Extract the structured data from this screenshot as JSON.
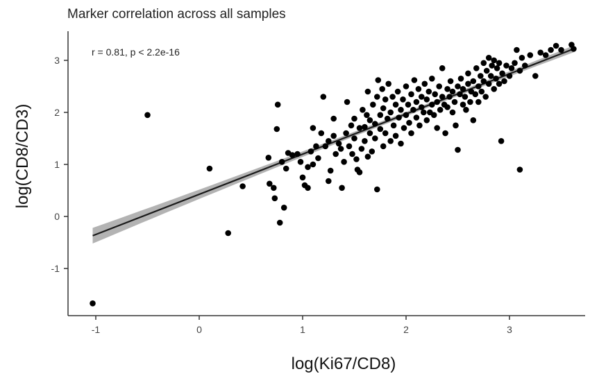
{
  "chart_data": {
    "type": "scatter",
    "title": "Marker correlation across all samples",
    "annotation": "r = 0.81, p < 2.2e-16",
    "xlabel": "log(Ki67/CD8)",
    "ylabel": "log(CD8/CD3)",
    "xlim": [
      -1.2,
      3.7
    ],
    "ylim": [
      -1.9,
      3.5
    ],
    "x_ticks": [
      -1,
      0,
      1,
      2,
      3
    ],
    "x_tick_labels": [
      "-1",
      "0",
      "1",
      "2",
      "3"
    ],
    "y_ticks": [
      -1,
      0,
      1,
      2,
      3
    ],
    "y_tick_labels": [
      "-1",
      "0",
      "1",
      "2",
      "3"
    ],
    "grid": false,
    "fit": {
      "type": "linear",
      "x_start": -1.03,
      "y_start": -0.37,
      "x_end": 3.62,
      "y_end": 3.22,
      "band_halfwidth_ends": 0.15,
      "band_halfwidth_center": 0.04,
      "band_center_x": 2.1,
      "band_color": "#999999",
      "line_color": "#1a1a1a"
    },
    "point_color": "#000000",
    "points": [
      [
        -1.03,
        -1.67
      ],
      [
        -0.5,
        1.95
      ],
      [
        0.1,
        0.92
      ],
      [
        0.28,
        -0.32
      ],
      [
        0.42,
        0.58
      ],
      [
        0.67,
        1.13
      ],
      [
        0.68,
        0.63
      ],
      [
        0.72,
        0.55
      ],
      [
        0.73,
        0.35
      ],
      [
        0.75,
        1.68
      ],
      [
        0.76,
        2.15
      ],
      [
        0.78,
        -0.12
      ],
      [
        0.82,
        0.17
      ],
      [
        0.8,
        1.05
      ],
      [
        0.86,
        1.22
      ],
      [
        0.9,
        1.18
      ],
      [
        0.84,
        0.92
      ],
      [
        0.95,
        1.2
      ],
      [
        0.98,
        1.05
      ],
      [
        1.0,
        0.75
      ],
      [
        1.02,
        0.6
      ],
      [
        1.05,
        0.55
      ],
      [
        1.05,
        0.95
      ],
      [
        1.08,
        1.25
      ],
      [
        1.1,
        1.0
      ],
      [
        1.1,
        1.7
      ],
      [
        1.13,
        1.35
      ],
      [
        1.15,
        1.12
      ],
      [
        1.18,
        1.6
      ],
      [
        1.2,
        2.3
      ],
      [
        1.22,
        1.35
      ],
      [
        1.25,
        1.45
      ],
      [
        1.25,
        0.68
      ],
      [
        1.27,
        0.88
      ],
      [
        1.3,
        1.55
      ],
      [
        1.3,
        1.88
      ],
      [
        1.32,
        1.2
      ],
      [
        1.35,
        1.4
      ],
      [
        1.37,
        1.3
      ],
      [
        1.38,
        0.55
      ],
      [
        1.4,
        1.05
      ],
      [
        1.42,
        1.6
      ],
      [
        1.43,
        2.2
      ],
      [
        1.45,
        1.35
      ],
      [
        1.47,
        1.75
      ],
      [
        1.48,
        1.2
      ],
      [
        1.5,
        1.5
      ],
      [
        1.5,
        1.88
      ],
      [
        1.52,
        1.1
      ],
      [
        1.53,
        0.9
      ],
      [
        1.55,
        1.7
      ],
      [
        1.55,
        0.85
      ],
      [
        1.57,
        1.3
      ],
      [
        1.58,
        2.05
      ],
      [
        1.6,
        1.45
      ],
      [
        1.6,
        1.72
      ],
      [
        1.62,
        1.95
      ],
      [
        1.63,
        2.4
      ],
      [
        1.63,
        1.15
      ],
      [
        1.65,
        1.85
      ],
      [
        1.65,
        1.6
      ],
      [
        1.67,
        1.25
      ],
      [
        1.68,
        2.15
      ],
      [
        1.7,
        1.5
      ],
      [
        1.7,
        1.78
      ],
      [
        1.72,
        2.3
      ],
      [
        1.72,
        0.52
      ],
      [
        1.73,
        2.62
      ],
      [
        1.75,
        1.68
      ],
      [
        1.75,
        1.95
      ],
      [
        1.77,
        2.45
      ],
      [
        1.78,
        1.35
      ],
      [
        1.78,
        2.08
      ],
      [
        1.8,
        1.6
      ],
      [
        1.8,
        2.25
      ],
      [
        1.82,
        1.88
      ],
      [
        1.83,
        2.55
      ],
      [
        1.85,
        1.45
      ],
      [
        1.85,
        2.0
      ],
      [
        1.87,
        2.3
      ],
      [
        1.88,
        1.75
      ],
      [
        1.9,
        2.15
      ],
      [
        1.9,
        1.55
      ],
      [
        1.92,
        2.4
      ],
      [
        1.93,
        1.9
      ],
      [
        1.95,
        2.05
      ],
      [
        1.95,
        1.4
      ],
      [
        1.97,
        2.25
      ],
      [
        1.98,
        1.7
      ],
      [
        2.0,
        2.5
      ],
      [
        2.0,
        1.95
      ],
      [
        2.02,
        2.15
      ],
      [
        2.03,
        1.8
      ],
      [
        2.05,
        2.35
      ],
      [
        2.05,
        1.6
      ],
      [
        2.07,
        2.05
      ],
      [
        2.08,
        2.62
      ],
      [
        2.1,
        1.9
      ],
      [
        2.1,
        2.2
      ],
      [
        2.12,
        2.45
      ],
      [
        2.13,
        1.75
      ],
      [
        2.15,
        2.1
      ],
      [
        2.15,
        2.3
      ],
      [
        2.17,
        2.0
      ],
      [
        2.18,
        2.55
      ],
      [
        2.2,
        1.85
      ],
      [
        2.2,
        2.25
      ],
      [
        2.22,
        2.4
      ],
      [
        2.23,
        2.0
      ],
      [
        2.25,
        2.15
      ],
      [
        2.25,
        2.65
      ],
      [
        2.27,
        1.95
      ],
      [
        2.28,
        2.35
      ],
      [
        2.3,
        2.2
      ],
      [
        2.3,
        1.7
      ],
      [
        2.32,
        2.5
      ],
      [
        2.33,
        2.05
      ],
      [
        2.35,
        2.3
      ],
      [
        2.35,
        2.85
      ],
      [
        2.37,
        2.15
      ],
      [
        2.38,
        1.6
      ],
      [
        2.4,
        2.45
      ],
      [
        2.4,
        2.1
      ],
      [
        2.42,
        2.3
      ],
      [
        2.43,
        2.6
      ],
      [
        2.45,
        2.0
      ],
      [
        2.45,
        2.4
      ],
      [
        2.47,
        2.2
      ],
      [
        2.48,
        1.75
      ],
      [
        2.5,
        2.5
      ],
      [
        2.5,
        1.28
      ],
      [
        2.52,
        2.35
      ],
      [
        2.53,
        2.65
      ],
      [
        2.55,
        2.15
      ],
      [
        2.55,
        2.45
      ],
      [
        2.57,
        2.3
      ],
      [
        2.58,
        2.05
      ],
      [
        2.6,
        2.55
      ],
      [
        2.6,
        2.75
      ],
      [
        2.62,
        2.2
      ],
      [
        2.63,
        2.4
      ],
      [
        2.65,
        2.6
      ],
      [
        2.65,
        1.85
      ],
      [
        2.67,
        2.35
      ],
      [
        2.68,
        2.85
      ],
      [
        2.7,
        2.5
      ],
      [
        2.7,
        2.2
      ],
      [
        2.72,
        2.7
      ],
      [
        2.73,
        2.4
      ],
      [
        2.75,
        2.95
      ],
      [
        2.75,
        2.6
      ],
      [
        2.77,
        2.3
      ],
      [
        2.78,
        2.8
      ],
      [
        2.8,
        3.05
      ],
      [
        2.8,
        2.55
      ],
      [
        2.82,
        2.7
      ],
      [
        2.83,
        2.9
      ],
      [
        2.85,
        2.45
      ],
      [
        2.85,
        3.0
      ],
      [
        2.87,
        2.65
      ],
      [
        2.88,
        2.85
      ],
      [
        2.9,
        2.55
      ],
      [
        2.9,
        2.95
      ],
      [
        2.92,
        1.45
      ],
      [
        2.93,
        2.75
      ],
      [
        2.95,
        2.6
      ],
      [
        2.97,
        2.9
      ],
      [
        3.0,
        2.7
      ],
      [
        3.02,
        2.85
      ],
      [
        3.05,
        2.95
      ],
      [
        3.07,
        3.2
      ],
      [
        3.1,
        0.9
      ],
      [
        3.1,
        2.8
      ],
      [
        3.12,
        3.05
      ],
      [
        3.15,
        2.9
      ],
      [
        3.2,
        3.1
      ],
      [
        3.25,
        2.7
      ],
      [
        3.3,
        3.15
      ],
      [
        3.35,
        3.1
      ],
      [
        3.4,
        3.2
      ],
      [
        3.45,
        3.28
      ],
      [
        3.5,
        3.2
      ],
      [
        3.6,
        3.3
      ],
      [
        3.62,
        3.22
      ]
    ]
  }
}
